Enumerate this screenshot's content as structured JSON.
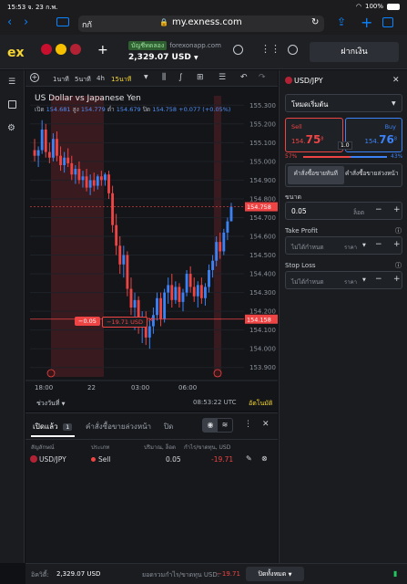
{
  "status_bar": {
    "time": "15:53",
    "date": "จ. 23 ก.พ.",
    "battery": "100%"
  },
  "browser": {
    "tab_title": "กกั",
    "url": "my.exness.com"
  },
  "header": {
    "logo": "ex",
    "account_type": "บัญชีทดลอง",
    "server": "forexonapp.com",
    "balance": "2,329.07 USD",
    "deposit_button": "ฝากเงิน"
  },
  "chart_toolbar": {
    "timeframes": [
      "1นาที",
      "5นาที",
      "4h",
      "15นาที"
    ],
    "active_timeframe": "15นาที"
  },
  "chart": {
    "title": "US Dollar vs Japanese Yen",
    "open_label": "เปิด",
    "open": "154.681",
    "high_label": "สูง",
    "high": "154.779",
    "low_label": "ต่ำ",
    "low": "154.679",
    "close_label": "ปิด",
    "close": "154.758",
    "change": "+0.077 (+0.05%)",
    "current_price_tag": "154.758",
    "position_line_price": "154.158",
    "position_qty_tag": "−0.05",
    "position_pnl_tag": "−19.71 USD",
    "y_ticks": [
      "155.300",
      "155.200",
      "155.100",
      "155.000",
      "154.900",
      "154.800",
      "154.700",
      "154.600",
      "154.500",
      "154.400",
      "154.300",
      "154.200",
      "154.100",
      "154.000",
      "153.900"
    ],
    "x_ticks": [
      "18:00",
      "22",
      "03:00",
      "06:00"
    ],
    "range_label": "ช่วงวันที่",
    "clock": "08:53:22 UTC",
    "auto_label": "อัตโนมัติ"
  },
  "chart_data": {
    "type": "candlestick",
    "ylim": [
      153.85,
      155.35
    ],
    "y_ticks": [
      155.3,
      155.2,
      155.1,
      155.0,
      154.9,
      154.8,
      154.7,
      154.6,
      154.5,
      154.4,
      154.3,
      154.2,
      154.1,
      154.0,
      153.9
    ],
    "candles": [
      [
        155.06,
        155.12,
        155.0,
        155.03
      ],
      [
        155.03,
        155.08,
        154.97,
        155.06
      ],
      [
        155.06,
        155.22,
        155.04,
        155.17
      ],
      [
        155.17,
        155.2,
        155.02,
        155.05
      ],
      [
        155.05,
        155.1,
        154.99,
        155.02
      ],
      [
        155.02,
        155.15,
        155.0,
        155.12
      ],
      [
        155.12,
        155.16,
        155.0,
        155.03
      ],
      [
        155.03,
        155.08,
        154.95,
        154.98
      ],
      [
        154.98,
        155.05,
        154.94,
        155.02
      ],
      [
        155.02,
        155.07,
        154.97,
        154.99
      ],
      [
        154.99,
        155.03,
        154.9,
        154.93
      ],
      [
        154.93,
        154.98,
        154.88,
        154.96
      ],
      [
        154.96,
        155.0,
        154.88,
        154.9
      ],
      [
        154.9,
        154.95,
        154.86,
        154.92
      ],
      [
        154.92,
        154.96,
        154.84,
        154.86
      ],
      [
        154.86,
        154.93,
        154.82,
        154.9
      ],
      [
        154.9,
        154.94,
        154.84,
        154.87
      ],
      [
        154.87,
        154.93,
        154.85,
        154.92
      ],
      [
        154.92,
        154.95,
        154.87,
        154.9
      ],
      [
        154.9,
        154.94,
        154.87,
        154.93
      ],
      [
        154.93,
        154.95,
        154.8,
        154.83
      ],
      [
        154.83,
        154.87,
        154.62,
        154.66
      ],
      [
        154.66,
        154.72,
        154.5,
        154.55
      ],
      [
        154.55,
        154.6,
        154.4,
        154.45
      ],
      [
        154.45,
        154.55,
        154.38,
        154.5
      ],
      [
        154.5,
        154.52,
        154.28,
        154.32
      ],
      [
        154.32,
        154.38,
        154.18,
        154.22
      ],
      [
        154.22,
        154.3,
        154.1,
        154.26
      ],
      [
        154.26,
        154.28,
        154.08,
        154.12
      ],
      [
        154.12,
        154.2,
        154.03,
        154.17
      ],
      [
        154.17,
        154.2,
        154.02,
        154.06
      ],
      [
        154.06,
        154.15,
        154.0,
        154.12
      ],
      [
        154.12,
        154.22,
        154.08,
        154.18
      ],
      [
        154.18,
        154.3,
        154.15,
        154.27
      ],
      [
        154.27,
        154.3,
        154.12,
        154.16
      ],
      [
        154.16,
        154.32,
        154.14,
        154.3
      ],
      [
        154.3,
        154.38,
        154.24,
        154.34
      ],
      [
        154.34,
        154.4,
        154.22,
        154.26
      ],
      [
        154.26,
        154.36,
        154.24,
        154.33
      ],
      [
        154.33,
        154.35,
        154.22,
        154.25
      ],
      [
        154.25,
        154.32,
        154.2,
        154.3
      ],
      [
        154.3,
        154.42,
        154.28,
        154.4
      ],
      [
        154.4,
        154.44,
        154.3,
        154.33
      ],
      [
        154.33,
        154.38,
        154.25,
        154.28
      ],
      [
        154.28,
        154.36,
        154.22,
        154.34
      ],
      [
        154.34,
        154.38,
        154.24,
        154.27
      ],
      [
        154.27,
        154.35,
        154.23,
        154.33
      ],
      [
        154.33,
        154.45,
        154.3,
        154.42
      ],
      [
        154.42,
        154.5,
        154.38,
        154.47
      ],
      [
        154.47,
        154.6,
        154.44,
        154.57
      ],
      [
        154.57,
        154.62,
        154.48,
        154.52
      ],
      [
        154.52,
        154.64,
        154.5,
        154.62
      ],
      [
        154.62,
        154.7,
        154.58,
        154.68
      ],
      [
        154.681,
        154.779,
        154.679,
        154.758
      ]
    ]
  },
  "order_panel": {
    "symbol": "USD/JPY",
    "mode": "โหมดเริ่มต้น",
    "sell_label": "Sell",
    "sell_price_main": "154.",
    "sell_price_big": "75",
    "sell_price_sup": "8",
    "buy_label": "Buy",
    "buy_price_main": "154.",
    "buy_price_big": "76",
    "buy_price_sup": "8",
    "spread": "1.0",
    "sell_percent": "57%",
    "buy_percent": "43%",
    "market_order_tab": "คำสั่งซื้อขายทันที",
    "pending_order_tab": "คำสั่งซื้อขายล่วงหน้า",
    "volume_label": "ขนาด",
    "volume_value": "0.05",
    "volume_unit": "ล็อต",
    "tp_label": "Take Profit",
    "tp_value": "ไม่ได้กำหนด",
    "tp_unit": "ราคา",
    "sl_label": "Stop Loss",
    "sl_value": "ไม่ได้กำหนด",
    "sl_unit": "ราคา"
  },
  "positions": {
    "tabs": [
      {
        "label": "เปิดแล้ว",
        "count": "1"
      },
      {
        "label": "คำสั่งซื้อขายล่วงหน้า"
      },
      {
        "label": "ปิด"
      }
    ],
    "columns": [
      "สัญลักษณ์",
      "ประเภท",
      "ปริมาณ, ล็อต",
      "กำไร/ขาดทุน, USD"
    ],
    "rows": [
      {
        "symbol": "USD/JPY",
        "type": "Sell",
        "volume": "0.05",
        "pnl": "-19.71"
      }
    ]
  },
  "footer": {
    "equity_label": "อิควิตี้:",
    "equity": "2,329.07 USD",
    "total_pnl_label": "ยอดรวมกำไร/ขาดทุน USD:",
    "total_pnl": "−19.71",
    "close_all": "ปิดทั้งหมด"
  },
  "colors": {
    "bull": "#3b82f6",
    "bear": "#ef4444",
    "accent": "#f6d635",
    "session": "#5a1f25"
  }
}
